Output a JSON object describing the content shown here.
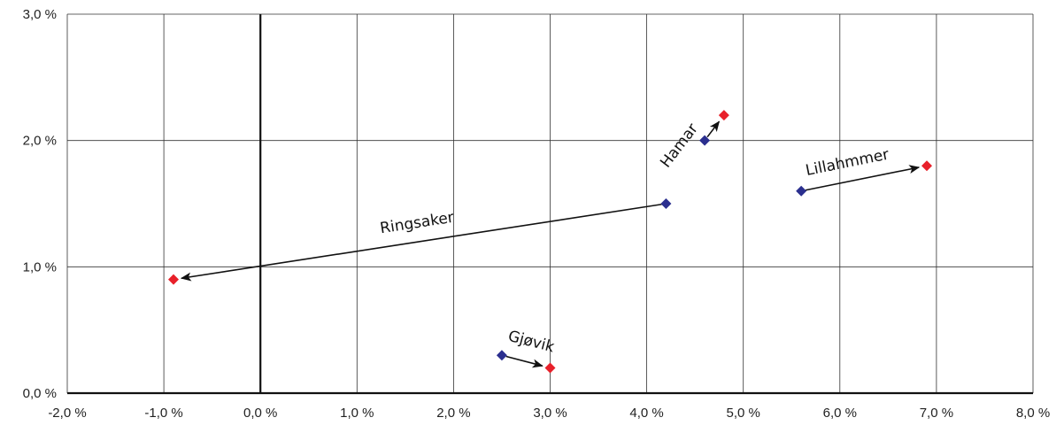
{
  "chart_data": {
    "type": "scatter",
    "title": "",
    "xlabel": "",
    "ylabel": "",
    "xlim": [
      -2.0,
      8.0
    ],
    "ylim": [
      0.0,
      3.0
    ],
    "x_ticks": [
      -2,
      -1,
      0,
      1,
      2,
      3,
      4,
      5,
      6,
      7,
      8
    ],
    "y_ticks": [
      0,
      1,
      2,
      3
    ],
    "x_tick_labels": [
      "-2,0 %",
      "-1,0 %",
      "0,0 %",
      "1,0 %",
      "2,0 %",
      "3,0 %",
      "4,0 %",
      "5,0 %",
      "6,0 %",
      "7,0 %",
      "8,0 %"
    ],
    "y_tick_labels": [
      "0,0 %",
      "1,0 %",
      "2,0 %",
      "3,0 %"
    ],
    "grid": true,
    "colors": {
      "start": "#2b2f8f",
      "end": "#e8202a",
      "arrow": "#111111",
      "grid": "#333333"
    },
    "series": [
      {
        "name": "Hamar",
        "start": [
          4.6,
          2.0
        ],
        "end": [
          4.8,
          2.2
        ]
      },
      {
        "name": "Lillahmmer",
        "start": [
          5.6,
          1.6
        ],
        "end": [
          6.9,
          1.8
        ]
      },
      {
        "name": "Ringsaker",
        "start": [
          4.2,
          1.5
        ],
        "end": [
          -0.9,
          0.9
        ]
      },
      {
        "name": "Gjøvik",
        "start": [
          2.5,
          0.3
        ],
        "end": [
          3.0,
          0.2
        ]
      }
    ]
  }
}
